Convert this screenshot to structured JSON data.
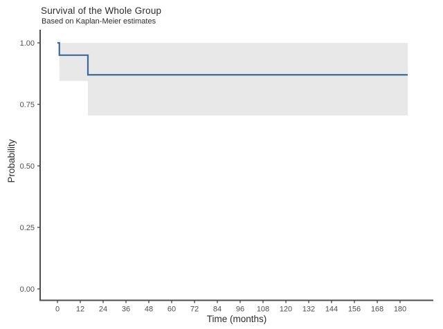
{
  "header": {
    "title": "Survival of the Whole Group",
    "subtitle": "Based on Kaplan-Meier estimates"
  },
  "chart_data": {
    "type": "line",
    "subtype": "kaplan-meier-step-with-ci",
    "title": "Survival of the Whole Group",
    "subtitle": "Based on Kaplan-Meier estimates",
    "xlabel": "Time (months)",
    "ylabel": "Probability",
    "xlim": [
      -10,
      198
    ],
    "ylim": [
      -0.04,
      1.05
    ],
    "grid": false,
    "legend": "none",
    "x_ticks": [
      {
        "v": 0,
        "label": "0"
      },
      {
        "v": 12,
        "label": "12"
      },
      {
        "v": 24,
        "label": "24"
      },
      {
        "v": 36,
        "label": "36"
      },
      {
        "v": 48,
        "label": "48"
      },
      {
        "v": 60,
        "label": "60"
      },
      {
        "v": 72,
        "label": "72"
      },
      {
        "v": 84,
        "label": "84"
      },
      {
        "v": 96,
        "label": "96"
      },
      {
        "v": 108,
        "label": "108"
      },
      {
        "v": 120,
        "label": "120"
      },
      {
        "v": 132,
        "label": "132"
      },
      {
        "v": 144,
        "label": "144"
      },
      {
        "v": 156,
        "label": "156"
      },
      {
        "v": 168,
        "label": "168"
      },
      {
        "v": 180,
        "label": "180"
      }
    ],
    "y_ticks": [
      {
        "v": 0.0,
        "label": "0.00"
      },
      {
        "v": 0.25,
        "label": "0.25"
      },
      {
        "v": 0.5,
        "label": "0.50"
      },
      {
        "v": 0.75,
        "label": "0.75"
      },
      {
        "v": 1.0,
        "label": "1.00"
      }
    ],
    "series": [
      {
        "name": "whole-group-survival",
        "steps": [
          {
            "t": 0,
            "s": 1.0
          },
          {
            "t": 1,
            "s": 0.95
          },
          {
            "t": 16,
            "s": 0.87
          }
        ],
        "end_time": 184
      }
    ],
    "confidence_band": [
      {
        "t1": 1,
        "t2": 16,
        "lower": 0.845,
        "upper": 1.0
      },
      {
        "t1": 16,
        "t2": 184,
        "lower": 0.705,
        "upper": 1.0
      }
    ],
    "colors": {
      "line": "#3a699a",
      "band": "#e8e8e8",
      "axis": "#4d4d4d",
      "tick_text": "#4d4d4d",
      "title_text": "#2b2b2b"
    }
  }
}
